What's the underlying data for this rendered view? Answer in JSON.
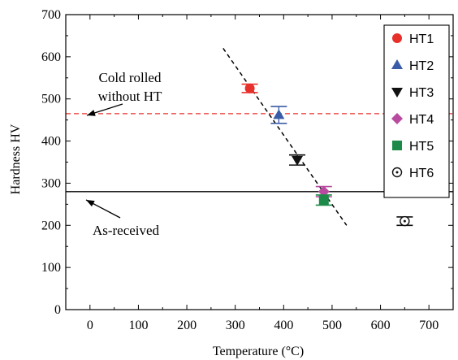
{
  "chart_data": {
    "type": "scatter",
    "xlabel": "Temperature (°C)",
    "ylabel": "Hardness HV",
    "xlim": [
      -50,
      750
    ],
    "ylim": [
      0,
      700
    ],
    "xticks": [
      0,
      100,
      200,
      300,
      400,
      500,
      600,
      700
    ],
    "yticks": [
      0,
      100,
      200,
      300,
      400,
      500,
      600,
      700
    ],
    "legend_position": "top-right",
    "series": [
      {
        "name": "HT1",
        "marker": "circle",
        "color": "#e8302a",
        "x": [
          330
        ],
        "y": [
          525
        ],
        "err": [
          10
        ]
      },
      {
        "name": "HT2",
        "marker": "triangle-up",
        "color": "#3a5ca6",
        "x": [
          390
        ],
        "y": [
          462
        ],
        "err": [
          20
        ]
      },
      {
        "name": "HT3",
        "marker": "triangle-down",
        "color": "#111111",
        "x": [
          428
        ],
        "y": [
          355
        ],
        "err": [
          12
        ]
      },
      {
        "name": "HT4",
        "marker": "diamond",
        "color": "#b84aa0",
        "x": [
          483
        ],
        "y": [
          280
        ],
        "err": [
          12
        ]
      },
      {
        "name": "HT5",
        "marker": "square",
        "color": "#1e8a4a",
        "x": [
          483
        ],
        "y": [
          260
        ],
        "err": [
          12
        ]
      },
      {
        "name": "HT6",
        "marker": "circle-open",
        "color": "#111111",
        "x": [
          650
        ],
        "y": [
          210
        ],
        "err": [
          10
        ]
      }
    ],
    "reference_lines": [
      {
        "label_lines": [
          "Cold rolled",
          "without HT"
        ],
        "y": 465,
        "style": "dashed",
        "color": "#e8302a"
      },
      {
        "label_lines": [
          "As-received"
        ],
        "y": 280,
        "style": "solid",
        "color": "#000000"
      }
    ],
    "trend_line": {
      "x": [
        275,
        530
      ],
      "y": [
        620,
        200
      ],
      "style": "dashed",
      "color": "#000000"
    }
  }
}
